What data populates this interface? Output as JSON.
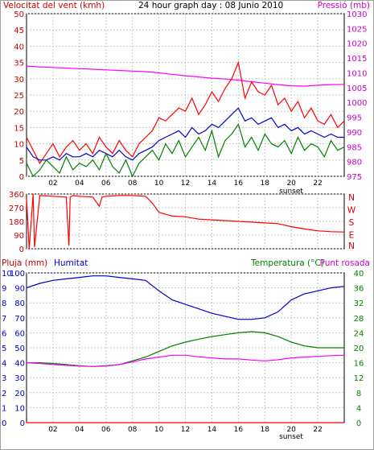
{
  "chart_data": [
    {
      "type": "line",
      "title": "24 hour graph day : 08 Junio 2010",
      "left_axis_label": "Velocitat del vent (kmh)",
      "right_axis_label": "Pressió (mb)",
      "left_ticks": [
        0,
        5,
        10,
        15,
        20,
        25,
        30,
        35,
        40,
        45,
        50
      ],
      "right_ticks": [
        975,
        980,
        985,
        990,
        995,
        1000,
        1005,
        1010,
        1015,
        1020,
        1025,
        1030
      ],
      "x_ticks": [
        "02",
        "04",
        "06",
        "08",
        "10",
        "12",
        "14",
        "16",
        "18",
        "20",
        "22"
      ],
      "x_range_hours": [
        0,
        24
      ],
      "annotation": "sunset",
      "series": [
        {
          "color": "#ff00ff",
          "axis": "right",
          "x": [
            0,
            1,
            2,
            3,
            4,
            5,
            6,
            7,
            8,
            9,
            10,
            11,
            12,
            13,
            14,
            15,
            16,
            17,
            18,
            19,
            20,
            21,
            22,
            23,
            24
          ],
          "y": [
            1012.3,
            1012.0,
            1011.8,
            1011.6,
            1011.4,
            1011.2,
            1011.0,
            1010.8,
            1010.6,
            1010.4,
            1010.0,
            1009.5,
            1009.0,
            1008.6,
            1008.2,
            1007.9,
            1007.5,
            1007.0,
            1006.5,
            1006.0,
            1005.6,
            1005.5,
            1005.8,
            1006.0,
            1006.1
          ]
        },
        {
          "color": "#ff0000",
          "axis": "left",
          "x": [
            0,
            0.5,
            1,
            1.5,
            2,
            2.5,
            3,
            3.5,
            4,
            4.5,
            5,
            5.5,
            6,
            6.5,
            7,
            7.5,
            8,
            8.5,
            9,
            9.5,
            10,
            10.5,
            11,
            11.5,
            12,
            12.5,
            13,
            13.5,
            14,
            14.5,
            15,
            15.5,
            16,
            16.5,
            17,
            17.5,
            18,
            18.5,
            19,
            19.5,
            20,
            20.5,
            21,
            21.5,
            22,
            22.5,
            23,
            23.5,
            24
          ],
          "y": [
            12,
            8,
            4,
            7,
            10,
            6,
            9,
            11,
            8,
            10,
            7,
            12,
            9,
            7,
            11,
            8,
            6,
            10,
            12,
            14,
            18,
            17,
            19,
            21,
            20,
            24,
            19,
            22,
            26,
            23,
            27,
            30,
            35,
            24,
            29,
            26,
            25,
            28,
            22,
            24,
            20,
            23,
            18,
            21,
            17,
            16,
            19,
            15,
            17
          ]
        },
        {
          "color": "#0000cc",
          "axis": "left",
          "x": [
            0,
            0.5,
            1,
            1.5,
            2,
            2.5,
            3,
            3.5,
            4,
            4.5,
            5,
            5.5,
            6,
            6.5,
            7,
            7.5,
            8,
            8.5,
            9,
            9.5,
            10,
            10.5,
            11,
            11.5,
            12,
            12.5,
            13,
            13.5,
            14,
            14.5,
            15,
            15.5,
            16,
            16.5,
            17,
            17.5,
            18,
            18.5,
            19,
            19.5,
            20,
            20.5,
            21,
            21.5,
            22,
            22.5,
            23,
            23.5,
            24
          ],
          "y": [
            9,
            6,
            5,
            5,
            6,
            5,
            7,
            6,
            6,
            7,
            6,
            8,
            7,
            6,
            8,
            6,
            5,
            7,
            8,
            9,
            11,
            12,
            13,
            14,
            12,
            15,
            13,
            14,
            16,
            15,
            17,
            19,
            21,
            17,
            18,
            16,
            17,
            18,
            15,
            16,
            14,
            15,
            13,
            14,
            13,
            12,
            13,
            12,
            12
          ]
        },
        {
          "color": "#008000",
          "axis": "left",
          "x": [
            0,
            0.5,
            1,
            1.5,
            2,
            2.5,
            3,
            3.5,
            4,
            4.5,
            5,
            5.5,
            6,
            6.5,
            7,
            7.5,
            8,
            8.5,
            9,
            9.5,
            10,
            10.5,
            11,
            11.5,
            12,
            12.5,
            13,
            13.5,
            14,
            14.5,
            15,
            15.5,
            16,
            16.5,
            17,
            17.5,
            18,
            18.5,
            19,
            19.5,
            20,
            20.5,
            21,
            21.5,
            22,
            22.5,
            23,
            23.5,
            24
          ],
          "y": [
            4,
            0,
            2,
            5,
            3,
            1,
            6,
            2,
            4,
            3,
            5,
            2,
            7,
            3,
            1,
            5,
            0,
            4,
            6,
            8,
            5,
            10,
            7,
            11,
            6,
            9,
            12,
            8,
            14,
            6,
            11,
            13,
            16,
            9,
            12,
            8,
            13,
            10,
            9,
            11,
            7,
            12,
            8,
            10,
            9,
            6,
            11,
            8,
            9
          ]
        }
      ]
    },
    {
      "type": "line",
      "left_ticks": [
        0,
        90,
        180,
        270,
        360
      ],
      "right_labels": [
        "N",
        "W",
        "S",
        "E",
        "N"
      ],
      "series": [
        {
          "color": "#ff0000",
          "x": [
            0,
            0.2,
            0.5,
            0.6,
            1,
            2,
            3,
            3.2,
            3.3,
            3.5,
            4,
            5,
            5.5,
            5.7,
            6,
            7,
            8,
            9,
            9.5,
            10,
            11,
            12,
            13,
            14,
            15,
            16,
            17,
            18,
            19,
            20,
            21,
            22,
            23,
            24
          ],
          "y": [
            330,
            0,
            360,
            10,
            350,
            345,
            340,
            20,
            340,
            350,
            345,
            340,
            280,
            340,
            345,
            350,
            350,
            345,
            300,
            240,
            215,
            210,
            195,
            190,
            185,
            180,
            175,
            170,
            165,
            145,
            130,
            118,
            112,
            110
          ]
        }
      ]
    },
    {
      "type": "line",
      "left_axis_label": "Pluja (mm)",
      "humidity_label": "Humitat",
      "temp_label": "Temperatura (°C)",
      "dew_label": "Punt rosada",
      "rain_ticks": [
        0,
        1,
        2,
        3,
        4,
        5,
        6,
        7,
        8,
        9,
        10
      ],
      "humidity_ticks": [
        0,
        10,
        20,
        30,
        40,
        50,
        60,
        70,
        80,
        90,
        100
      ],
      "humidity_tick_labels": [
        "0",
        "10",
        "20",
        "30",
        "40",
        "50",
        "60",
        "70",
        "80",
        "90",
        "100"
      ],
      "temp_ticks": [
        0,
        4,
        8,
        12,
        16,
        20,
        24,
        28,
        32,
        36,
        40
      ],
      "x_ticks": [
        "02",
        "04",
        "06",
        "08",
        "10",
        "12",
        "14",
        "16",
        "18",
        "20",
        "22"
      ],
      "annotation": "sunset",
      "series": [
        {
          "color": "#0000cc",
          "axis": "humidity",
          "x": [
            0,
            1,
            2,
            3,
            4,
            5,
            6,
            7,
            8,
            9,
            10,
            11,
            12,
            13,
            14,
            15,
            16,
            17,
            18,
            19,
            20,
            21,
            22,
            23,
            24
          ],
          "y": [
            90,
            93,
            95,
            96,
            97,
            98,
            98,
            97,
            96,
            95,
            88,
            82,
            79,
            76,
            73,
            71,
            69,
            69,
            70,
            74,
            82,
            86,
            88,
            90,
            91
          ]
        },
        {
          "color": "#008000",
          "axis": "temp",
          "x": [
            0,
            1,
            2,
            3,
            4,
            5,
            6,
            7,
            8,
            9,
            10,
            11,
            12,
            13,
            14,
            15,
            16,
            17,
            18,
            19,
            20,
            21,
            22,
            23,
            24
          ],
          "y": [
            16,
            16,
            15.8,
            15.5,
            15.2,
            15,
            15.2,
            15.5,
            16.5,
            17.5,
            19,
            20.5,
            21.5,
            22.3,
            23,
            23.5,
            24,
            24.3,
            24,
            23,
            21.5,
            20.5,
            20,
            20,
            20
          ]
        },
        {
          "color": "#ff00ff",
          "axis": "temp",
          "x": [
            0,
            1,
            2,
            3,
            4,
            5,
            6,
            7,
            8,
            9,
            10,
            11,
            12,
            13,
            14,
            15,
            16,
            17,
            18,
            19,
            20,
            21,
            22,
            23,
            24
          ],
          "y": [
            16,
            15.8,
            15.5,
            15.3,
            15.1,
            15,
            15.1,
            15.5,
            16.2,
            17,
            17.5,
            18,
            18,
            17.6,
            17.3,
            17,
            17,
            16.7,
            16.5,
            16.8,
            17.3,
            17.5,
            17.7,
            17.9,
            18
          ]
        },
        {
          "color": "#ff0000",
          "axis": "rain",
          "x": [
            0,
            24
          ],
          "y": [
            0,
            0
          ]
        }
      ]
    }
  ]
}
